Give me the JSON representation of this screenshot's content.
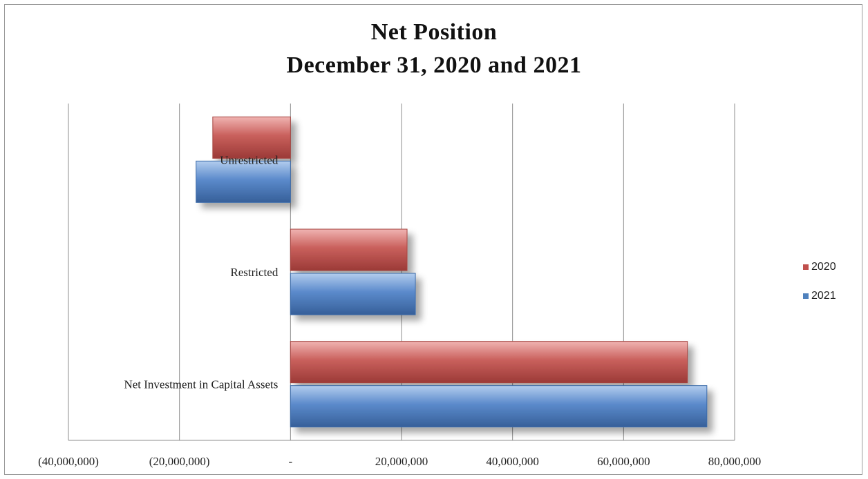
{
  "chart_data": {
    "type": "bar",
    "orientation": "horizontal",
    "title": "Net Position",
    "subtitle": "December 31, 2020 and 2021",
    "categories": [
      "Unrestricted",
      "Restricted",
      "Net Investment in Capital Assets"
    ],
    "series": [
      {
        "name": "2020",
        "values": [
          -14000000,
          21000000,
          71500000
        ],
        "color": "#c0504d"
      },
      {
        "name": "2021",
        "values": [
          -17000000,
          22500000,
          75000000
        ],
        "color": "#4f81bd"
      }
    ],
    "xlim": [
      -40000000,
      80000000
    ],
    "xticks": [
      {
        "value": -40000000,
        "label": "(40,000,000)"
      },
      {
        "value": -20000000,
        "label": "(20,000,000)"
      },
      {
        "value": 0,
        "label": "-"
      },
      {
        "value": 20000000,
        "label": "20,000,000"
      },
      {
        "value": 40000000,
        "label": "40,000,000"
      },
      {
        "value": 60000000,
        "label": "60,000,000"
      },
      {
        "value": 80000000,
        "label": "80,000,000"
      }
    ],
    "grid": true,
    "legend": "right"
  }
}
